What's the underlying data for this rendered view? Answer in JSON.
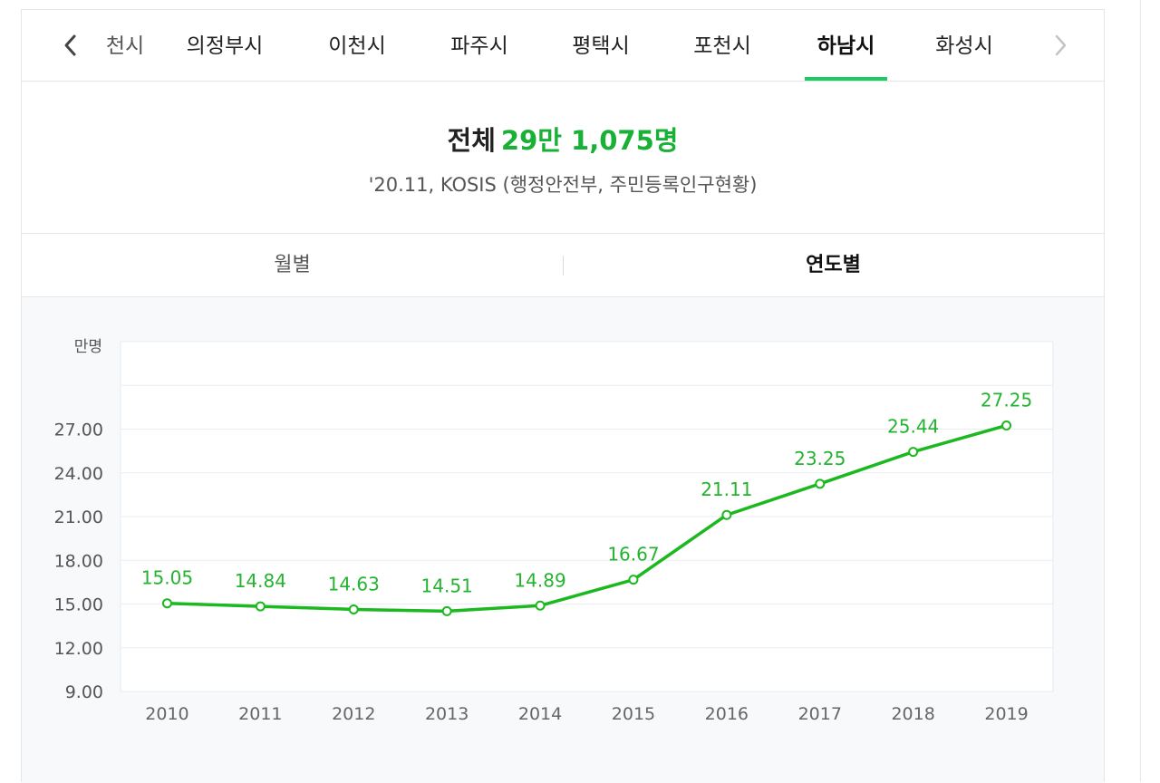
{
  "tabs": {
    "partial_label": "천시",
    "items": [
      {
        "label": "의정부시",
        "active": false
      },
      {
        "label": "이천시",
        "active": false
      },
      {
        "label": "파주시",
        "active": false
      },
      {
        "label": "평택시",
        "active": false
      },
      {
        "label": "포천시",
        "active": false
      },
      {
        "label": "하남시",
        "active": true
      },
      {
        "label": "화성시",
        "active": false
      }
    ],
    "prev_icon": "chevron-left-icon",
    "next_icon": "chevron-right-icon"
  },
  "summary": {
    "total_label": "전체",
    "total_value": "29만 1,075명",
    "source": "'20.11, KOSIS (행정안전부, 주민등록인구현황)"
  },
  "toggle": {
    "monthly": "월별",
    "yearly": "연도별",
    "active": "yearly"
  },
  "colors": {
    "accent": "#19ce60",
    "line": "#1cb820",
    "label": "#23b330"
  },
  "chart_data": {
    "type": "line",
    "unit_label": "만명",
    "categories": [
      "2010",
      "2011",
      "2012",
      "2013",
      "2014",
      "2015",
      "2016",
      "2017",
      "2018",
      "2019"
    ],
    "series": [
      {
        "values": [
          15.05,
          14.84,
          14.63,
          14.51,
          14.89,
          16.67,
          21.11,
          23.25,
          25.44,
          27.25
        ]
      }
    ],
    "value_labels": [
      "15.05",
      "14.84",
      "14.63",
      "14.51",
      "14.89",
      "16.67",
      "21.11",
      "23.25",
      "25.44",
      "27.25"
    ],
    "yticks": [
      "9.00",
      "12.00",
      "15.00",
      "18.00",
      "21.00",
      "24.00",
      "27.00"
    ],
    "ylim": [
      9,
      33
    ],
    "grid": true
  }
}
